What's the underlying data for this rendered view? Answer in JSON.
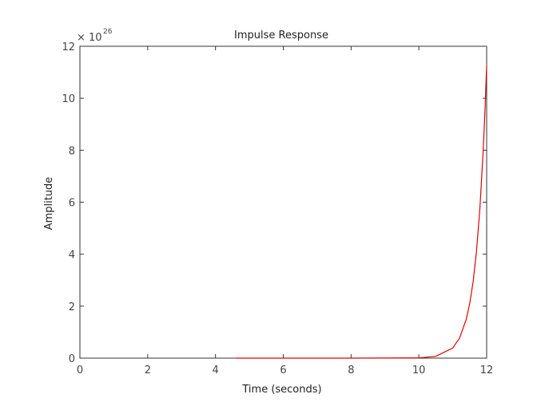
{
  "chart_data": {
    "type": "line",
    "title": "Impulse Response",
    "x_label": "Time (seconds)",
    "y_label": "Amplitude",
    "y_multiplier": {
      "base": "× 10",
      "power": "26"
    },
    "x": [
      4.6,
      6,
      8,
      10,
      10.5,
      11,
      11.2,
      11.4,
      11.5,
      11.6,
      11.7,
      11.8,
      11.9,
      11.95,
      12
    ],
    "series": [
      {
        "color": "#e00000",
        "values": [
          0,
          0,
          0,
          0.01,
          0.07,
          0.39,
          0.77,
          1.5,
          2.1,
          2.93,
          4.11,
          5.75,
          8.04,
          9.51,
          11.25
        ]
      }
    ],
    "xlim": [
      0,
      12
    ],
    "xticks": [
      0,
      2,
      4,
      6,
      8,
      10,
      12
    ],
    "ylim": [
      0,
      12
    ],
    "yticks": [
      0,
      2,
      4,
      6,
      8,
      10,
      12
    ],
    "grid": false
  }
}
